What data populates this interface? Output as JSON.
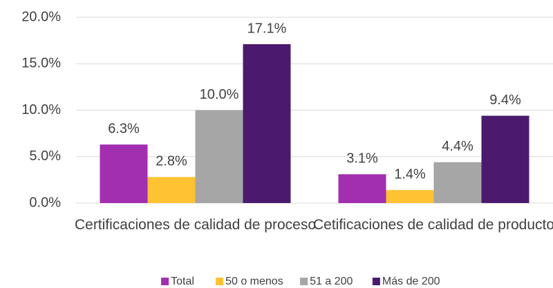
{
  "chart_data": {
    "type": "bar",
    "categories": [
      "Certificaciones de calidad de proceso",
      "Cetificaciones de calidad de producto"
    ],
    "series": [
      {
        "name": "Total",
        "color": "#a22eb0",
        "values": [
          6.3,
          3.1
        ],
        "value_labels": [
          "6.3%",
          "3.1%"
        ]
      },
      {
        "name": "50 o menos",
        "color": "#ffc233",
        "values": [
          2.8,
          1.4
        ],
        "value_labels": [
          "2.8%",
          "1.4%"
        ]
      },
      {
        "name": "51 a 200",
        "color": "#a6a6a6",
        "values": [
          10.0,
          4.4
        ],
        "value_labels": [
          "10.0%",
          "4.4%"
        ]
      },
      {
        "name": "Más de 200",
        "color": "#4b1a6e",
        "values": [
          17.1,
          9.4
        ],
        "value_labels": [
          "17.1%",
          "9.4%"
        ]
      }
    ],
    "ylim": [
      0,
      20
    ],
    "yticks": [
      {
        "value": 0,
        "label": "0.0%"
      },
      {
        "value": 5,
        "label": "5.0%"
      },
      {
        "value": 10,
        "label": "10.0%"
      },
      {
        "value": 15,
        "label": "15.0%"
      },
      {
        "value": 20,
        "label": "20.0%"
      }
    ],
    "grid": true,
    "legend": "bottom"
  }
}
